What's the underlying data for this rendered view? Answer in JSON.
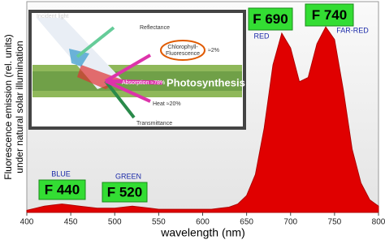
{
  "chart_data": {
    "type": "area",
    "x": [
      400,
      410,
      420,
      430,
      440,
      450,
      460,
      470,
      480,
      490,
      500,
      510,
      520,
      530,
      540,
      550,
      560,
      570,
      580,
      590,
      600,
      610,
      620,
      630,
      640,
      650,
      660,
      670,
      680,
      690,
      700,
      710,
      720,
      730,
      740,
      750,
      760,
      770,
      780,
      790,
      800
    ],
    "values": [
      1,
      2,
      3,
      3.5,
      4,
      3.5,
      3,
      2.5,
      2,
      2,
      2,
      2.5,
      3,
      2.5,
      2,
      1.5,
      1.5,
      1.5,
      1.5,
      1.5,
      1.5,
      1.5,
      2,
      2.5,
      4,
      8,
      18,
      40,
      70,
      85,
      78,
      62,
      64,
      80,
      88,
      82,
      58,
      30,
      14,
      6,
      3
    ],
    "color": "#e00000",
    "xlim": [
      400,
      800
    ],
    "xticks": [
      400,
      450,
      500,
      550,
      600,
      650,
      700,
      750,
      800
    ],
    "ylim": [
      0,
      100
    ],
    "x_label": "wavelength  (nm)",
    "y_label": [
      "Fluorescence emission (rel. units)",
      "under natural solar illumination"
    ],
    "peak_labels": [
      "F 440",
      "F 520",
      "F 690",
      "F 740"
    ],
    "band_labels": [
      "BLUE",
      "GREEN",
      "RED",
      "FAR-RED"
    ],
    "inset": {
      "incident_light": "Incident light",
      "reflectance": "Reflectance",
      "fluorescence": [
        "Chlorophyll-",
        "Fluorescence"
      ],
      "fluorescence_pct": "≈2%",
      "absorption": "Absorption ≈78%",
      "photosynthesis": "Photosynthesis",
      "heat": "Heat ≈20%",
      "transmittance": "Transmittance"
    }
  }
}
